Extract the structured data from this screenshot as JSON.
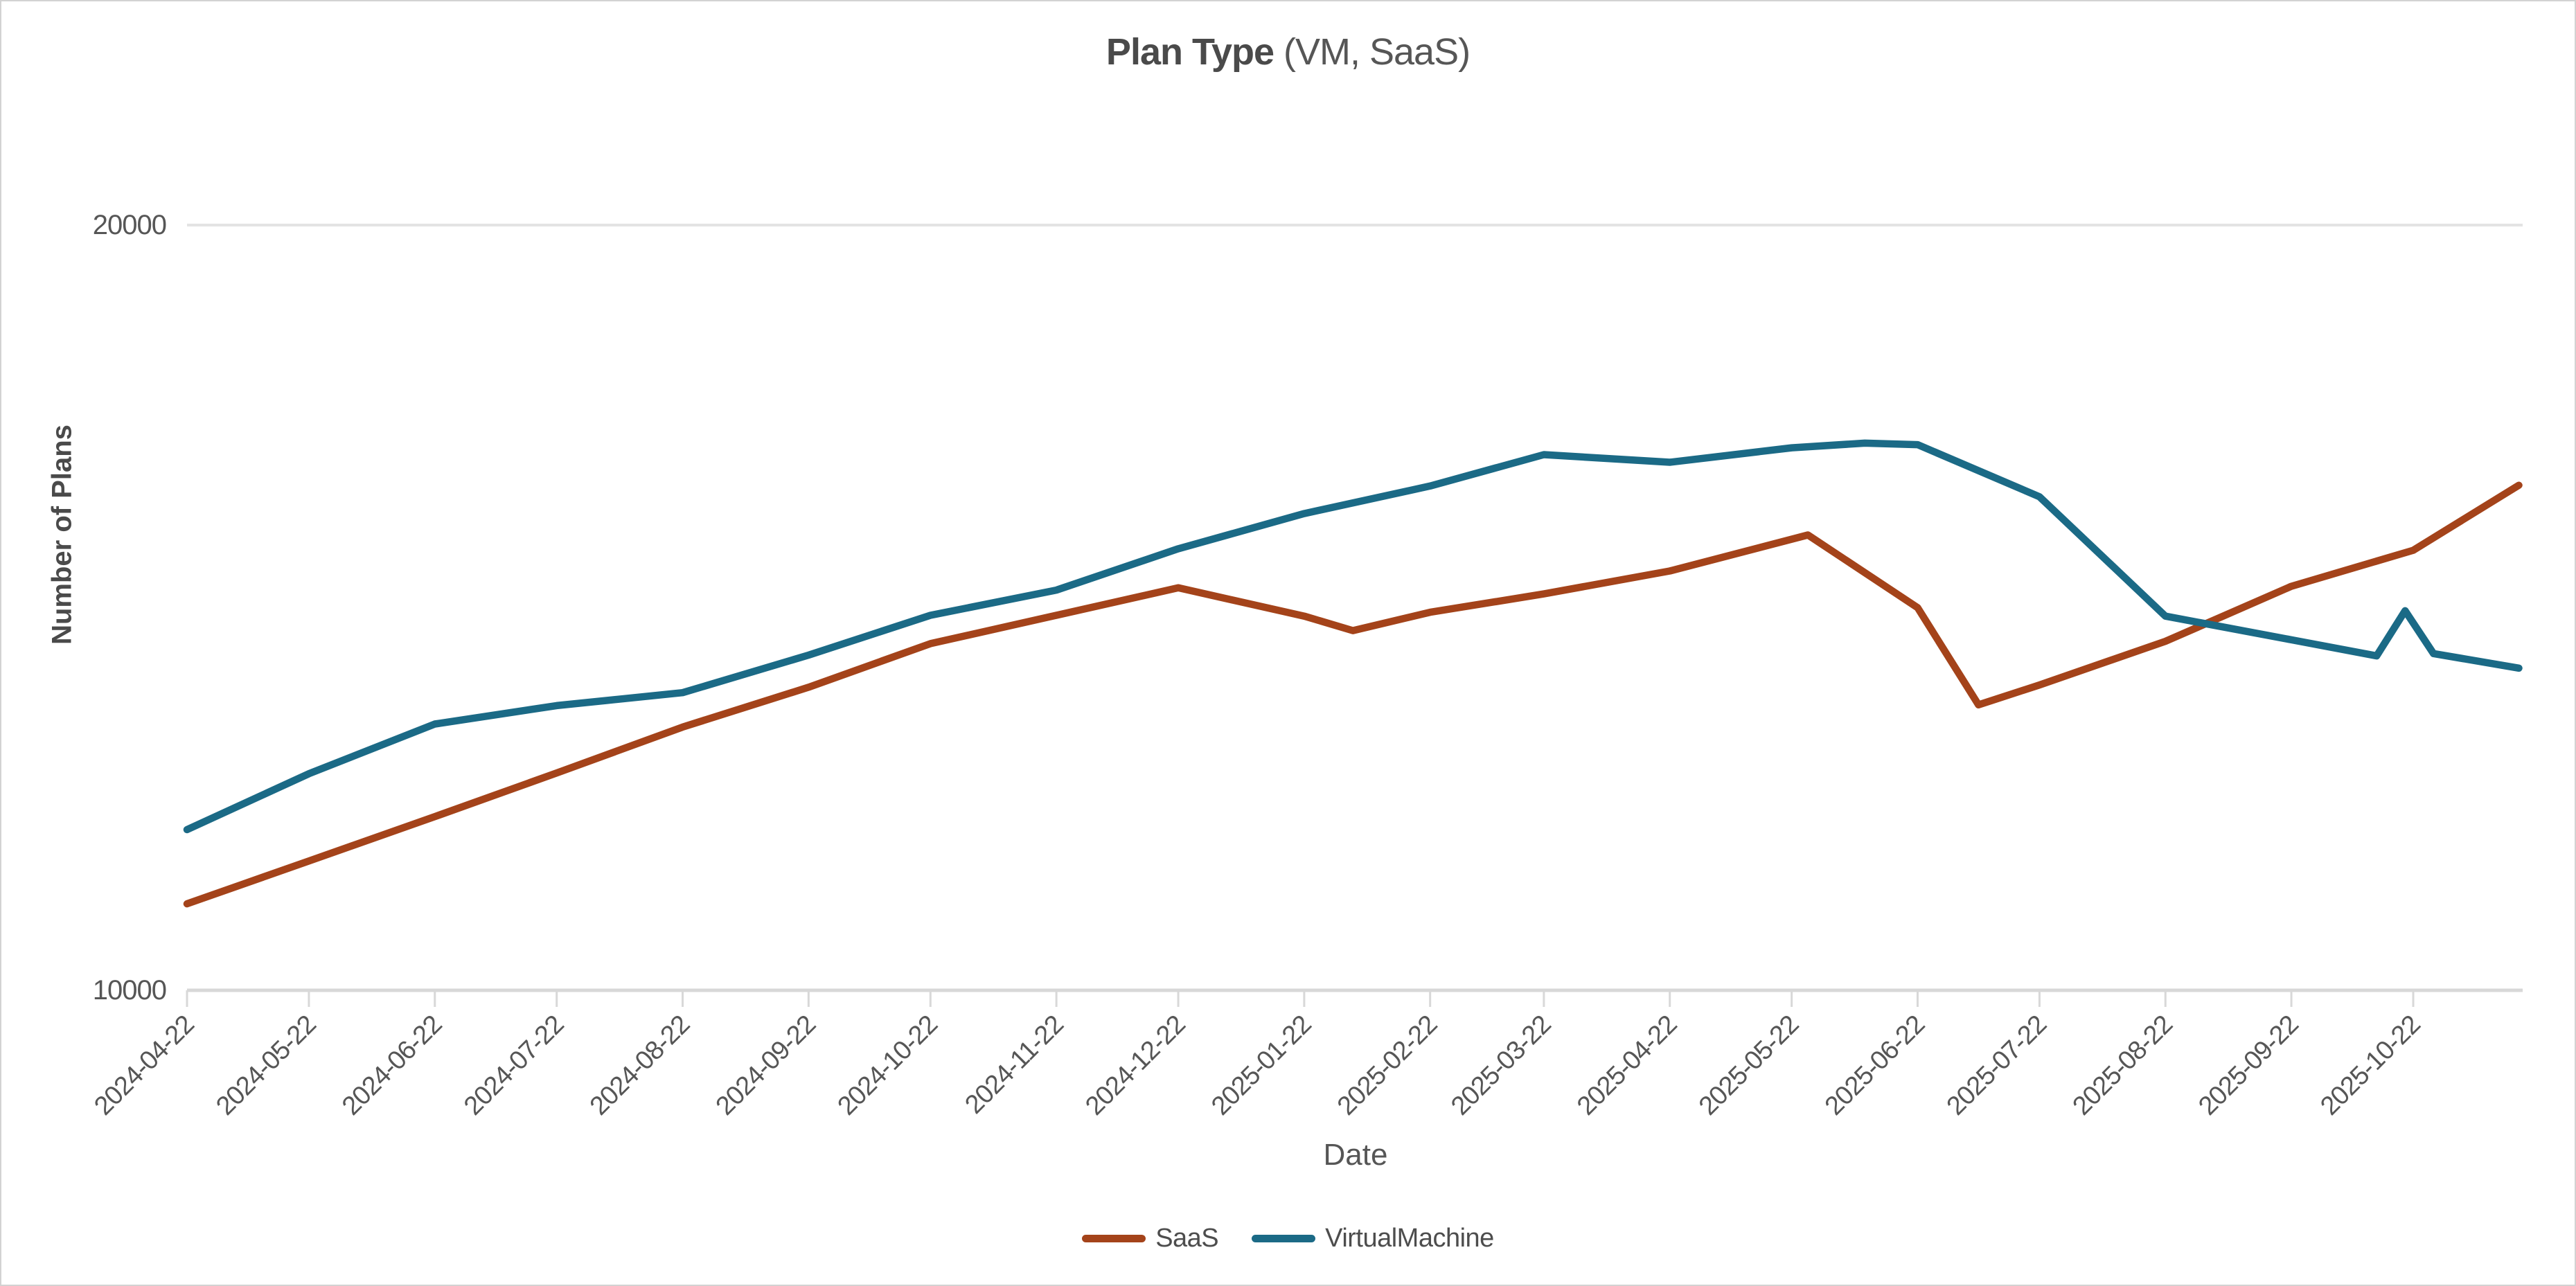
{
  "title": {
    "bold": "Plan Type",
    "rest": " (VM, SaaS)"
  },
  "chart_data": {
    "type": "line",
    "title": "Plan Type (VM, SaaS)",
    "xlabel": "Date",
    "ylabel": "Number of Plans",
    "ylim": [
      10000,
      20000
    ],
    "y_tick_labels": [
      "10000",
      "20000"
    ],
    "gridlines": {
      "y_values": [
        20000
      ],
      "color": "#e3e3e3"
    },
    "x_tick_labels": [
      "2024-04-22",
      "2024-05-22",
      "2024-06-22",
      "2024-07-22",
      "2024-08-22",
      "2024-09-22",
      "2024-10-22",
      "2024-11-22",
      "2024-12-22",
      "2025-01-22",
      "2025-02-22",
      "2025-03-22",
      "2025-04-22",
      "2025-05-22",
      "2025-06-22",
      "2025-07-22",
      "2025-08-22",
      "2025-09-22",
      "2025-10-22"
    ],
    "x_range": [
      "2024-04-22",
      "2025-11-17"
    ],
    "legend_position": "bottom",
    "series": [
      {
        "name": "SaaS",
        "color": "#A4431A",
        "points": [
          [
            "2024-04-22",
            11130
          ],
          [
            "2024-05-22",
            11690
          ],
          [
            "2024-06-22",
            12270
          ],
          [
            "2024-07-22",
            12840
          ],
          [
            "2024-08-22",
            13440
          ],
          [
            "2024-09-22",
            13960
          ],
          [
            "2024-10-22",
            14530
          ],
          [
            "2024-11-22",
            14900
          ],
          [
            "2024-12-22",
            15260
          ],
          [
            "2025-01-22",
            14890
          ],
          [
            "2025-02-03",
            14700
          ],
          [
            "2025-02-22",
            14940
          ],
          [
            "2025-03-22",
            15180
          ],
          [
            "2025-04-22",
            15480
          ],
          [
            "2025-05-26",
            15950
          ],
          [
            "2025-06-22",
            15000
          ],
          [
            "2025-07-07",
            13730
          ],
          [
            "2025-07-22",
            13990
          ],
          [
            "2025-08-22",
            14560
          ],
          [
            "2025-09-22",
            15280
          ],
          [
            "2025-10-22",
            15750
          ],
          [
            "2025-11-17",
            16600
          ]
        ]
      },
      {
        "name": "VirtualMachine",
        "color": "#1B6A86",
        "points": [
          [
            "2024-04-22",
            12100
          ],
          [
            "2024-05-22",
            12830
          ],
          [
            "2024-06-22",
            13480
          ],
          [
            "2024-07-22",
            13720
          ],
          [
            "2024-08-22",
            13890
          ],
          [
            "2024-09-22",
            14380
          ],
          [
            "2024-10-22",
            14900
          ],
          [
            "2024-11-22",
            15230
          ],
          [
            "2024-12-22",
            15770
          ],
          [
            "2025-01-22",
            16230
          ],
          [
            "2025-02-22",
            16590
          ],
          [
            "2025-03-22",
            17000
          ],
          [
            "2025-04-22",
            16900
          ],
          [
            "2025-05-22",
            17090
          ],
          [
            "2025-06-09",
            17150
          ],
          [
            "2025-06-22",
            17130
          ],
          [
            "2025-07-22",
            16450
          ],
          [
            "2025-08-22",
            14890
          ],
          [
            "2025-09-22",
            14580
          ],
          [
            "2025-10-13",
            14370
          ],
          [
            "2025-10-20",
            14960
          ],
          [
            "2025-10-27",
            14400
          ],
          [
            "2025-11-17",
            14210
          ]
        ]
      }
    ]
  },
  "colors": {
    "axis": "#d8d8d8",
    "gridline": "#e3e3e3",
    "tick_text": "#565656",
    "title_text": "#4a4a4a",
    "page_border": "#d2d2d2"
  }
}
